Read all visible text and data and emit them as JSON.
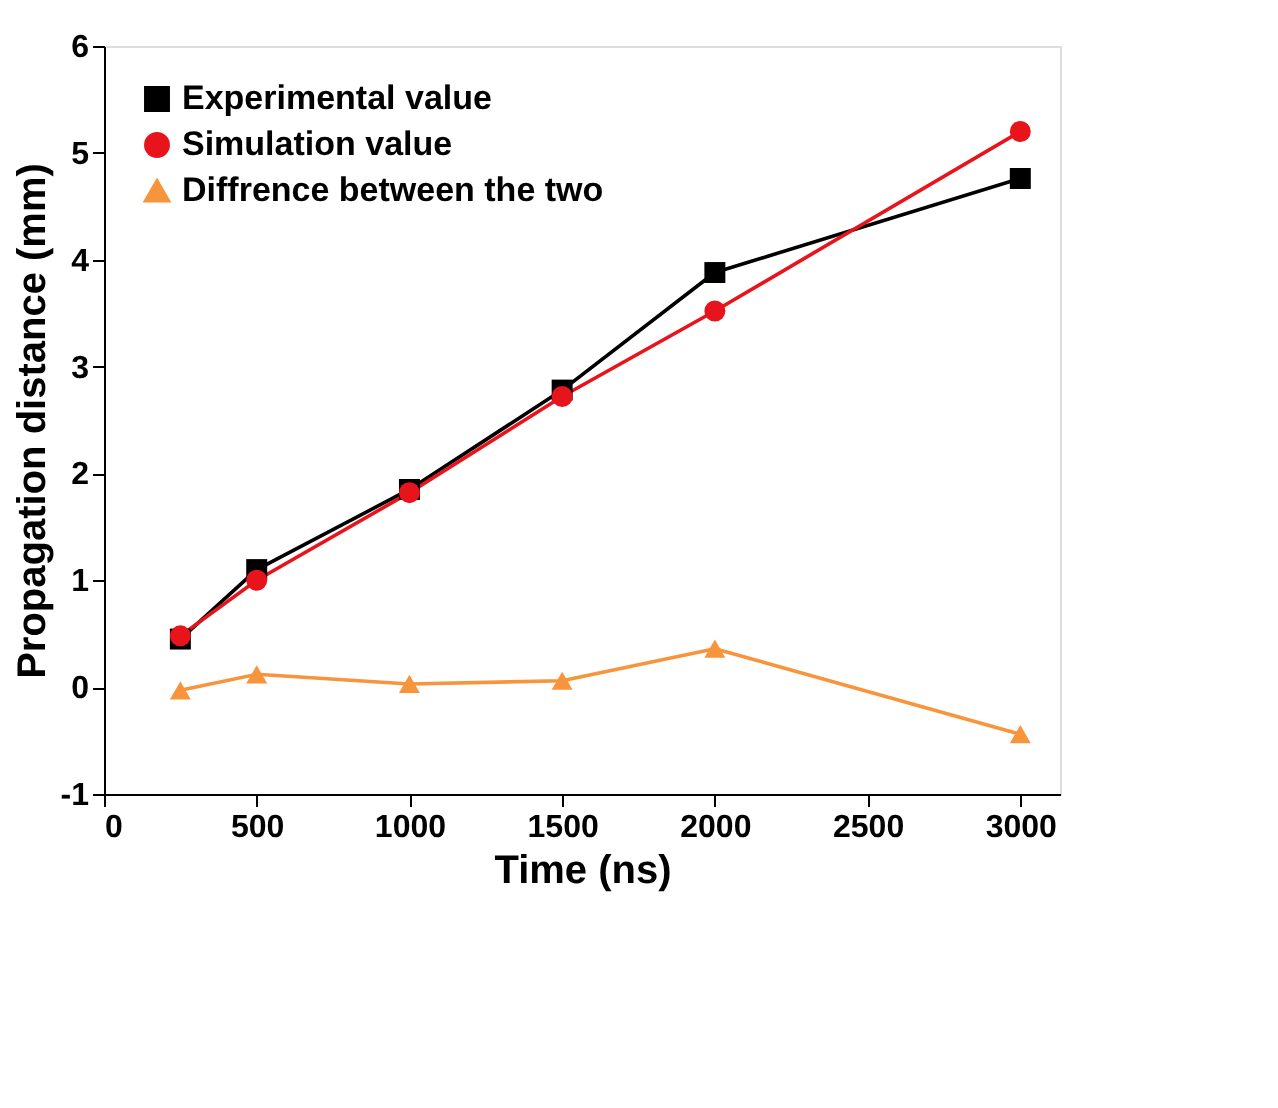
{
  "chart_data": {
    "type": "line",
    "xlabel": "Time (ns)",
    "ylabel": "Propagation distance (mm)",
    "x": [
      250,
      500,
      1000,
      1500,
      2000,
      3000
    ],
    "series": [
      {
        "name": "Experimental value",
        "color": "#000000",
        "marker": "square",
        "values": [
          0.45,
          1.1,
          1.85,
          2.78,
          3.88,
          4.76
        ]
      },
      {
        "name": "Simulation value",
        "color": "#e8141b",
        "marker": "circle",
        "values": [
          0.48,
          1.0,
          1.82,
          2.72,
          3.52,
          5.2
        ]
      },
      {
        "name": "Diffrence between the two",
        "color": "#f7943c",
        "marker": "triangle",
        "values": [
          -0.03,
          0.12,
          0.03,
          0.06,
          0.36,
          -0.44
        ]
      }
    ],
    "xlim": [
      0,
      3130
    ],
    "xticks": [
      0,
      500,
      1000,
      1500,
      2000,
      2500,
      3000
    ],
    "ylim": [
      -1,
      6
    ],
    "yticks": [
      -1,
      0,
      1,
      2,
      3,
      4,
      5,
      6
    ],
    "grid": false,
    "legend": "top left",
    "line_style": "solid"
  }
}
